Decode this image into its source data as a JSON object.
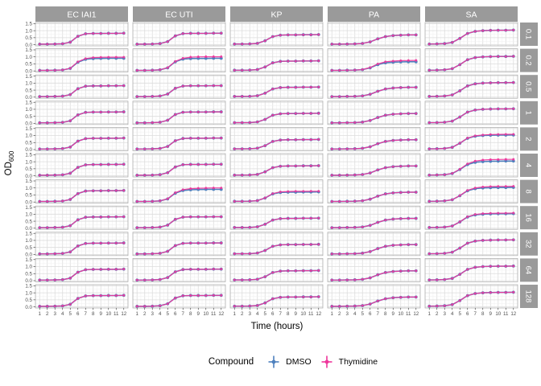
{
  "chart_data": {
    "type": "line",
    "title": "",
    "xlabel": "Time (hours)",
    "ylabel": "OD",
    "ylabel_sub": "600",
    "x": [
      1,
      2,
      3,
      4,
      5,
      6,
      7,
      8,
      9,
      10,
      11,
      12
    ],
    "x_ticks": [
      "1",
      "2",
      "3",
      "4",
      "5",
      "6",
      "7",
      "8",
      "9",
      "10",
      "11",
      "12"
    ],
    "y_ticks": [
      "0.0",
      "0.5",
      "1.0",
      "1.5"
    ],
    "y_tick_values": [
      0.0,
      0.5,
      1.0,
      1.5
    ],
    "ylim": [
      -0.08,
      1.58
    ],
    "grid": true,
    "legend_position": "bottom",
    "facet_cols": [
      "EC IAI1",
      "EC UTI",
      "KP",
      "PA",
      "SA"
    ],
    "facet_rows": [
      "0.1",
      "0.2",
      "0.5",
      "1",
      "2",
      "4",
      "8",
      "16",
      "32",
      "64",
      "128"
    ],
    "legend": {
      "title": "Compound",
      "series": [
        {
          "name": "DMSO",
          "color": "#4E81BE"
        },
        {
          "name": "Thymidine",
          "color": "#EE369B"
        }
      ]
    },
    "colors": {
      "strip_bg": "#9A9A9A",
      "strip_text": "#FFFFFF",
      "panel_bg": "#FFFFFF",
      "grid_major": "#DCDCDC",
      "grid_minor": "#EFEFEF",
      "panel_border": "#A8A8A8",
      "tick_text": "#4D4D4D",
      "axis_tick": "#333333"
    },
    "base_curves": {
      "EC IAI1": [
        0.04,
        0.04,
        0.05,
        0.07,
        0.18,
        0.6,
        0.78,
        0.8,
        0.8,
        0.81,
        0.81,
        0.82
      ],
      "EC UTI": [
        0.04,
        0.04,
        0.05,
        0.08,
        0.22,
        0.63,
        0.79,
        0.81,
        0.81,
        0.81,
        0.82,
        0.82
      ],
      "KP": [
        0.05,
        0.05,
        0.06,
        0.1,
        0.28,
        0.58,
        0.68,
        0.7,
        0.7,
        0.71,
        0.71,
        0.72
      ],
      "PA": [
        0.04,
        0.04,
        0.05,
        0.06,
        0.09,
        0.2,
        0.42,
        0.58,
        0.65,
        0.68,
        0.7,
        0.7
      ],
      "SA": [
        0.05,
        0.06,
        0.08,
        0.16,
        0.45,
        0.8,
        0.95,
        1.0,
        1.02,
        1.03,
        1.03,
        1.04
      ]
    },
    "panel_overrides": [
      {
        "row": "0.2",
        "col": "EC IAI1",
        "dmso": [
          0.04,
          0.04,
          0.05,
          0.07,
          0.18,
          0.62,
          0.83,
          0.88,
          0.89,
          0.9,
          0.9,
          0.9
        ],
        "thymidine": [
          0.04,
          0.04,
          0.05,
          0.07,
          0.19,
          0.65,
          0.88,
          0.95,
          0.97,
          0.98,
          0.98,
          0.98
        ],
        "err": [
          0,
          0,
          0,
          0,
          0,
          0.02,
          0.05,
          0.06,
          0.06,
          0.06,
          0.06,
          0.06
        ]
      },
      {
        "row": "0.2",
        "col": "EC UTI",
        "dmso": [
          0.04,
          0.04,
          0.05,
          0.08,
          0.22,
          0.65,
          0.84,
          0.88,
          0.89,
          0.89,
          0.9,
          0.9
        ],
        "thymidine": [
          0.04,
          0.04,
          0.05,
          0.08,
          0.23,
          0.68,
          0.9,
          0.98,
          1.0,
          1.01,
          1.01,
          1.01
        ],
        "err": [
          0,
          0,
          0,
          0,
          0,
          0.03,
          0.08,
          0.1,
          0.1,
          0.1,
          0.1,
          0.1
        ]
      },
      {
        "row": "0.2",
        "col": "PA",
        "dmso": [
          0.04,
          0.04,
          0.05,
          0.06,
          0.09,
          0.22,
          0.45,
          0.58,
          0.62,
          0.64,
          0.65,
          0.65
        ],
        "thymidine": [
          0.04,
          0.04,
          0.05,
          0.06,
          0.1,
          0.24,
          0.5,
          0.65,
          0.7,
          0.73,
          0.74,
          0.75
        ],
        "err": [
          0,
          0,
          0,
          0,
          0,
          0,
          0.04,
          0.07,
          0.08,
          0.08,
          0.09,
          0.09
        ]
      },
      {
        "row": "8",
        "col": "EC UTI",
        "dmso": [
          0.04,
          0.04,
          0.05,
          0.08,
          0.22,
          0.63,
          0.82,
          0.87,
          0.89,
          0.9,
          0.9,
          0.9
        ],
        "thymidine": [
          0.04,
          0.04,
          0.05,
          0.08,
          0.23,
          0.66,
          0.88,
          0.95,
          0.98,
          0.99,
          1.0,
          1.0
        ],
        "err": [
          0,
          0,
          0,
          0,
          0,
          0.02,
          0.06,
          0.08,
          0.08,
          0.08,
          0.08,
          0.08
        ]
      },
      {
        "row": "8",
        "col": "KP",
        "dmso": [
          0.05,
          0.05,
          0.06,
          0.1,
          0.28,
          0.58,
          0.68,
          0.7,
          0.7,
          0.71,
          0.71,
          0.72
        ],
        "thymidine": [
          0.05,
          0.05,
          0.06,
          0.1,
          0.29,
          0.6,
          0.72,
          0.75,
          0.76,
          0.76,
          0.77,
          0.77
        ],
        "err": [
          0,
          0,
          0,
          0,
          0,
          0.02,
          0.04,
          0.05,
          0.05,
          0.05,
          0.05,
          0.05
        ]
      },
      {
        "row": "2",
        "col": "SA",
        "dmso": [
          0.05,
          0.06,
          0.08,
          0.16,
          0.45,
          0.8,
          0.95,
          1.0,
          1.02,
          1.03,
          1.03,
          1.04
        ],
        "thymidine": [
          0.05,
          0.06,
          0.08,
          0.16,
          0.46,
          0.82,
          0.98,
          1.04,
          1.07,
          1.08,
          1.09,
          1.09
        ],
        "err": [
          0,
          0,
          0,
          0,
          0,
          0,
          0.02,
          0.03,
          0.04,
          0.04,
          0.04,
          0.04
        ]
      },
      {
        "row": "4",
        "col": "SA",
        "dmso": [
          0.05,
          0.06,
          0.08,
          0.16,
          0.45,
          0.8,
          0.96,
          1.01,
          1.03,
          1.04,
          1.05,
          1.05
        ],
        "thymidine": [
          0.05,
          0.06,
          0.08,
          0.17,
          0.47,
          0.85,
          1.05,
          1.12,
          1.15,
          1.16,
          1.17,
          1.17
        ],
        "err": [
          0,
          0,
          0,
          0,
          0,
          0.02,
          0.05,
          0.06,
          0.06,
          0.06,
          0.06,
          0.06
        ]
      },
      {
        "row": "8",
        "col": "SA",
        "dmso": [
          0.05,
          0.06,
          0.08,
          0.16,
          0.45,
          0.8,
          0.95,
          1.0,
          1.02,
          1.03,
          1.03,
          1.04
        ],
        "thymidine": [
          0.05,
          0.06,
          0.08,
          0.16,
          0.46,
          0.83,
          1.0,
          1.07,
          1.1,
          1.11,
          1.11,
          1.12
        ],
        "err": [
          0,
          0,
          0,
          0,
          0,
          0,
          0.03,
          0.05,
          0.05,
          0.05,
          0.05,
          0.05
        ]
      },
      {
        "row": "16",
        "col": "SA",
        "dmso": [
          0.05,
          0.06,
          0.08,
          0.16,
          0.45,
          0.8,
          0.95,
          1.0,
          1.02,
          1.03,
          1.03,
          1.04
        ],
        "thymidine": [
          0.05,
          0.06,
          0.08,
          0.16,
          0.46,
          0.82,
          0.98,
          1.04,
          1.06,
          1.07,
          1.07,
          1.08
        ],
        "err": [
          0,
          0,
          0,
          0,
          0,
          0,
          0.02,
          0.04,
          0.04,
          0.04,
          0.04,
          0.04
        ]
      }
    ]
  }
}
